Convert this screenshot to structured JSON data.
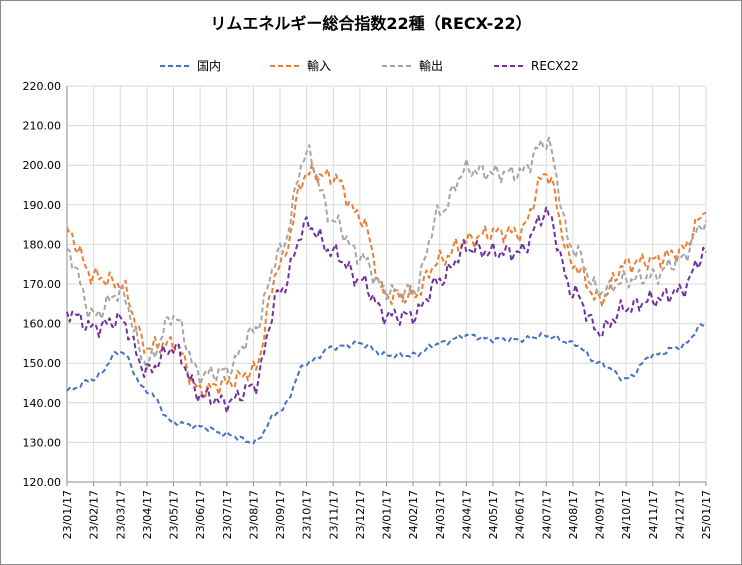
{
  "chart_data": {
    "type": "line",
    "title": "リムエネルギー総合指数22種（RECX-22）",
    "xlabel": "",
    "ylabel": "",
    "ylim": [
      120,
      220
    ],
    "yticks": [
      "120.00",
      "130.00",
      "140.00",
      "150.00",
      "160.00",
      "170.00",
      "180.00",
      "190.00",
      "200.00",
      "210.00",
      "220.00"
    ],
    "categories": [
      "23/01/17",
      "23/02/17",
      "23/03/17",
      "23/04/17",
      "23/05/17",
      "23/06/17",
      "23/07/17",
      "23/08/17",
      "23/09/17",
      "23/10/17",
      "23/11/17",
      "23/12/17",
      "24/01/17",
      "24/02/17",
      "24/03/17",
      "24/04/17",
      "24/05/17",
      "24/06/17",
      "24/07/17",
      "24/08/17",
      "24/09/17",
      "24/10/17",
      "24/11/17",
      "24/12/17",
      "25/01/17"
    ],
    "grid": true,
    "legend_position": "top",
    "series": [
      {
        "name": "国内",
        "color": "#4472c4",
        "values": [
          143,
          146,
          153,
          143,
          135,
          134,
          132,
          130,
          138,
          150,
          154,
          155,
          152,
          152,
          155,
          157,
          156,
          156,
          157,
          155,
          150,
          146,
          152,
          154,
          160
        ]
      },
      {
        "name": "輸入",
        "color": "#ed7d31",
        "values": [
          183,
          172,
          170,
          154,
          155,
          143,
          145,
          148,
          175,
          198,
          197,
          187,
          167,
          167,
          176,
          181,
          183,
          183,
          198,
          175,
          166,
          175,
          176,
          178,
          188
        ]
      },
      {
        "name": "輸出",
        "color": "#a5a5a5",
        "values": [
          178,
          162,
          168,
          150,
          162,
          147,
          148,
          158,
          178,
          203,
          186,
          177,
          168,
          168,
          188,
          199,
          198,
          198,
          206,
          179,
          168,
          171,
          172,
          176,
          186
        ]
      },
      {
        "name": "RECX22",
        "color": "#7030a0",
        "values": [
          163,
          159,
          161,
          148,
          154,
          142,
          140,
          144,
          168,
          185,
          178,
          171,
          162,
          162,
          171,
          179,
          178,
          178,
          188,
          168,
          158,
          164,
          166,
          168,
          178
        ]
      }
    ]
  }
}
